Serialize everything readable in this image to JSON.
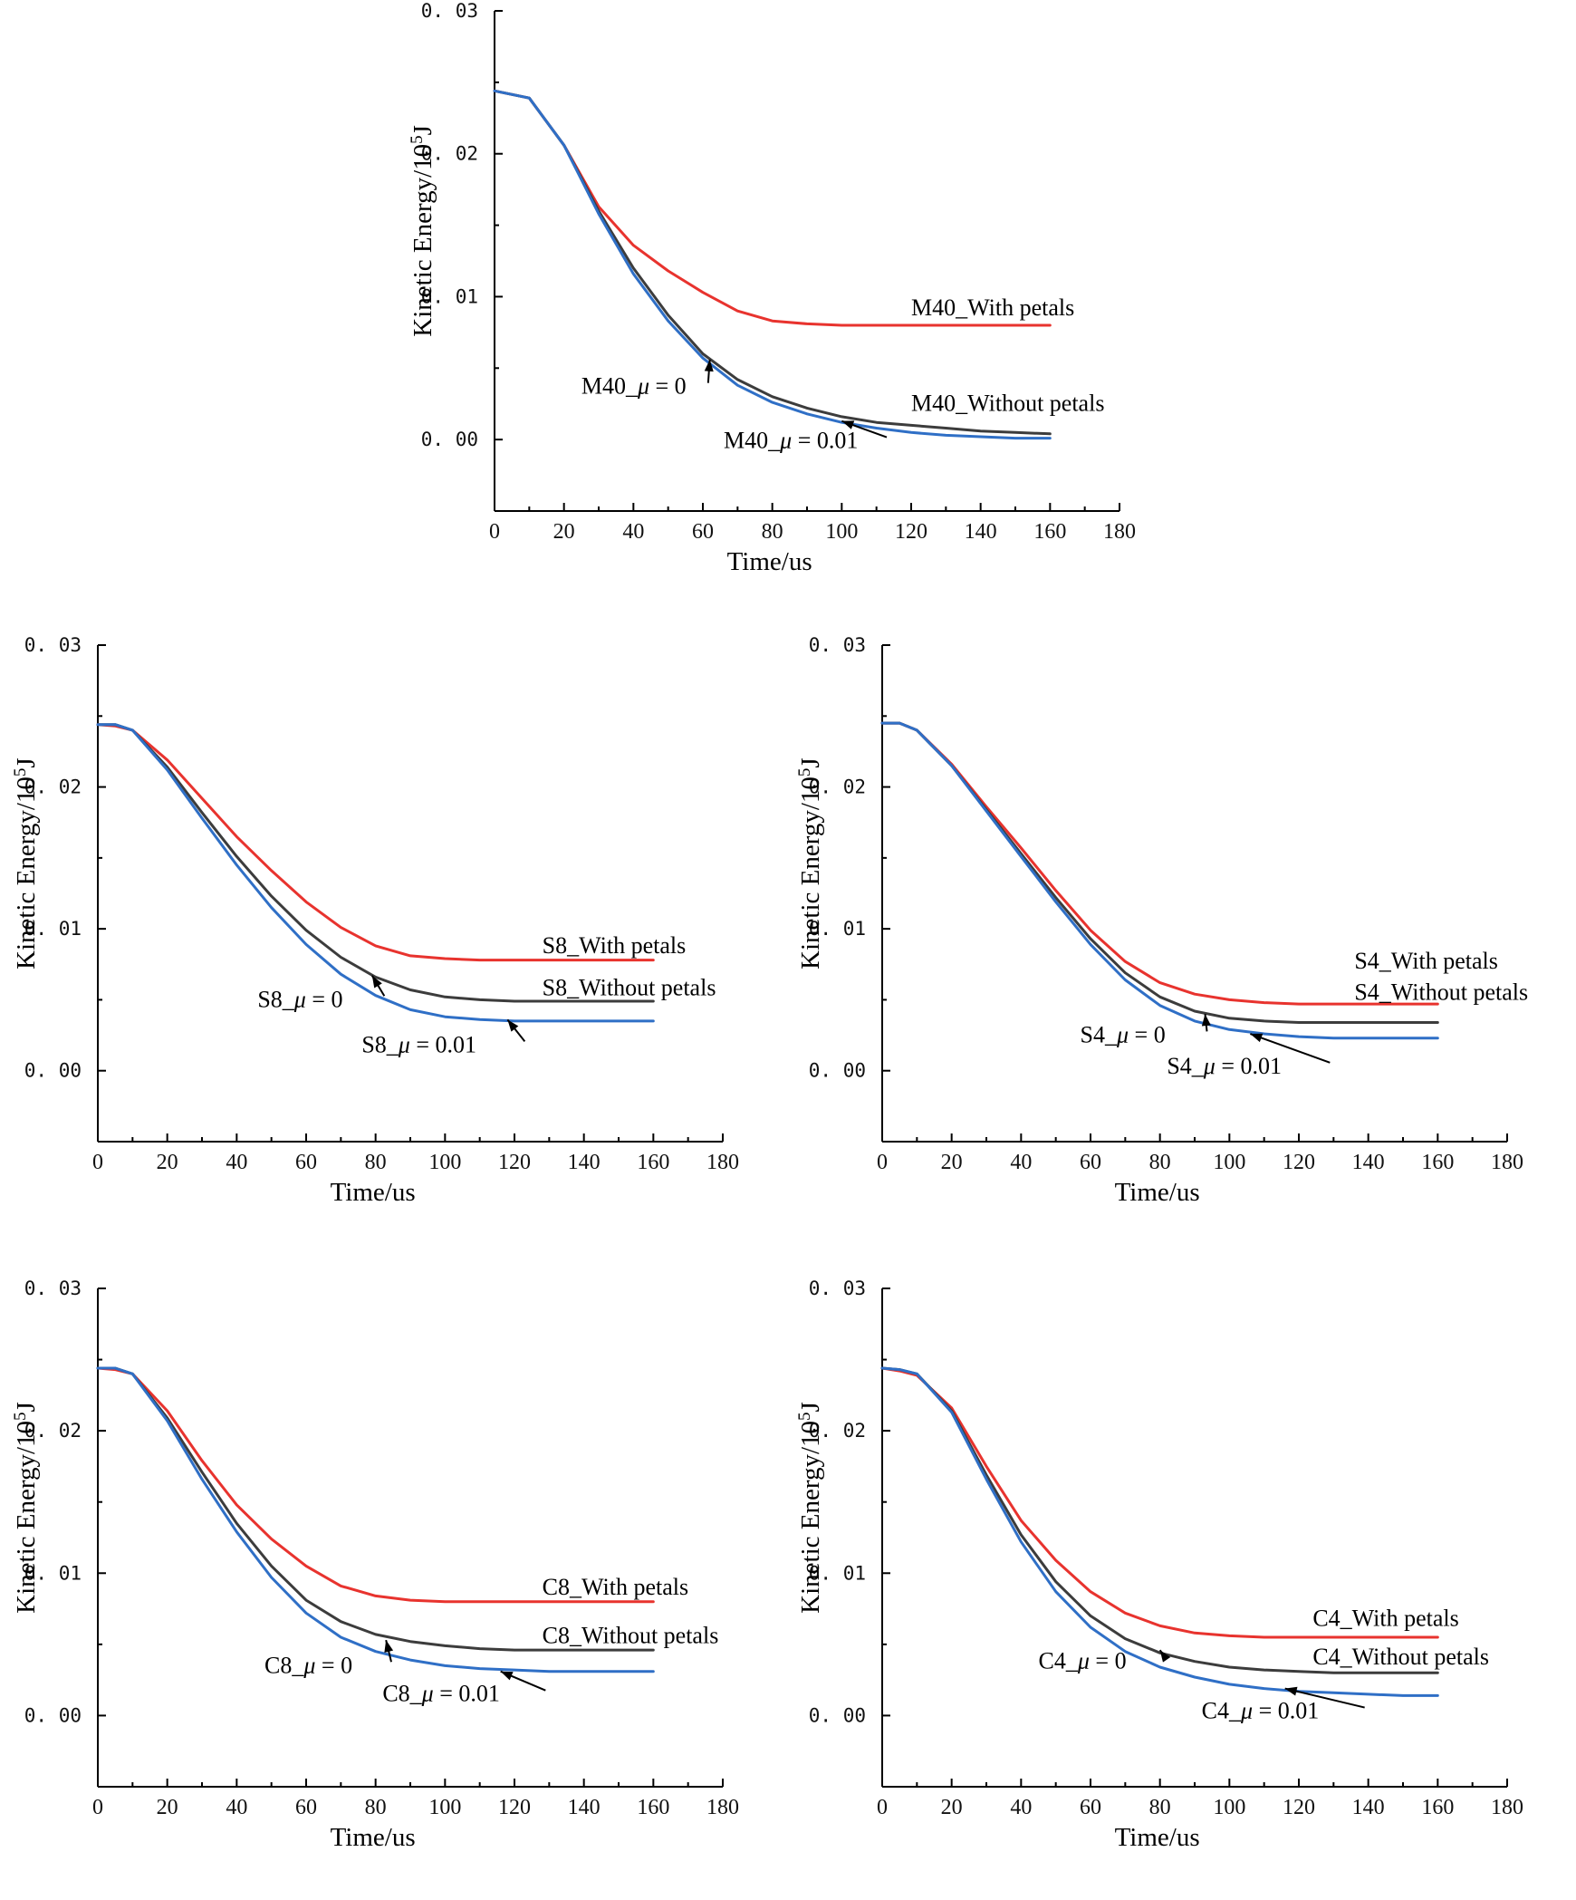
{
  "colors": {
    "with_petals": "#e8332e",
    "without_petals": "#3c3c3c",
    "mu_001": "#2f6fc6"
  },
  "chart_data": [
    {
      "type": "line",
      "panel": "top-center",
      "xlabel": "Time/us",
      "ylabel": "Kinetic Energy/10",
      "ylabel_exp": "5",
      "ylabel_unit": "J",
      "xlim": [
        0,
        180
      ],
      "ylim": [
        -0.005,
        0.03
      ],
      "xticks": [
        "0",
        "20",
        "40",
        "60",
        "80",
        "100",
        "120",
        "140",
        "160",
        "180"
      ],
      "yticks": [
        "0. 00",
        "0. 01",
        "0. 02",
        "0. 03"
      ],
      "ytick_values": [
        0,
        0.01,
        0.02,
        0.03
      ],
      "x": [
        0,
        10,
        20,
        30,
        40,
        50,
        60,
        70,
        80,
        90,
        100,
        110,
        120,
        130,
        140,
        150,
        160
      ],
      "series": [
        {
          "name": "M40_With petals",
          "color_key": "with_petals",
          "values": [
            0.0244,
            0.0239,
            0.0206,
            0.0163,
            0.0136,
            0.0118,
            0.0103,
            0.009,
            0.0083,
            0.0081,
            0.008,
            0.008,
            0.008,
            0.008,
            0.008,
            0.008,
            0.008
          ]
        },
        {
          "name": "M40_Without petals",
          "color_key": "without_petals",
          "values": [
            0.0244,
            0.0239,
            0.0206,
            0.016,
            0.012,
            0.0087,
            0.006,
            0.0042,
            0.003,
            0.0022,
            0.0016,
            0.0012,
            0.001,
            0.0008,
            0.0006,
            0.0005,
            0.0004
          ]
        },
        {
          "name": "M40_μ=0.01",
          "color_key": "mu_001",
          "values": [
            0.0244,
            0.0239,
            0.0206,
            0.0158,
            0.0116,
            0.0083,
            0.0057,
            0.0038,
            0.0026,
            0.0018,
            0.0012,
            0.0008,
            0.0005,
            0.0003,
            0.0002,
            0.0001,
            0.0001
          ]
        }
      ],
      "labels": [
        {
          "text": "M40_With petals",
          "x": 120,
          "y": 0.0087
        },
        {
          "text": "M40_Without petals",
          "x": 120,
          "y": 0.002
        },
        {
          "text": "M40_",
          "italic": "μ",
          "rest": " = 0",
          "x": 25,
          "y": 0.0032,
          "arrow_to": [
            62,
            0.0056
          ]
        },
        {
          "text": "M40_",
          "italic": "μ",
          "rest": " = 0.01",
          "x": 66,
          "y": -0.0006,
          "arrow_to": [
            100,
            0.0013
          ]
        }
      ]
    },
    {
      "type": "line",
      "panel": "middle-left",
      "xlabel": "Time/us",
      "ylabel": "Kinetic Energy/10",
      "ylabel_exp": "5",
      "ylabel_unit": "J",
      "xlim": [
        0,
        180
      ],
      "ylim": [
        -0.005,
        0.03
      ],
      "xticks": [
        "0",
        "20",
        "40",
        "60",
        "80",
        "100",
        "120",
        "140",
        "160",
        "180"
      ],
      "yticks": [
        "0. 00",
        "0. 01",
        "0. 02",
        "0. 03"
      ],
      "ytick_values": [
        0,
        0.01,
        0.02,
        0.03
      ],
      "x": [
        0,
        5,
        10,
        20,
        30,
        40,
        50,
        60,
        70,
        80,
        90,
        100,
        110,
        120,
        130,
        140,
        150,
        160
      ],
      "series": [
        {
          "name": "S8_With petals",
          "color_key": "with_petals",
          "values": [
            0.0244,
            0.0243,
            0.024,
            0.0219,
            0.0192,
            0.0165,
            0.0141,
            0.0119,
            0.0101,
            0.0088,
            0.0081,
            0.0079,
            0.0078,
            0.0078,
            0.0078,
            0.0078,
            0.0078,
            0.0078
          ]
        },
        {
          "name": "S8_Without petals",
          "color_key": "without_petals",
          "values": [
            0.0244,
            0.0244,
            0.024,
            0.0214,
            0.0182,
            0.0151,
            0.0123,
            0.0099,
            0.008,
            0.0066,
            0.0057,
            0.0052,
            0.005,
            0.0049,
            0.0049,
            0.0049,
            0.0049,
            0.0049
          ]
        },
        {
          "name": "S8_μ=0.01",
          "color_key": "mu_001",
          "values": [
            0.0244,
            0.0244,
            0.024,
            0.0212,
            0.0178,
            0.0145,
            0.0115,
            0.0089,
            0.0068,
            0.0053,
            0.0043,
            0.0038,
            0.0036,
            0.0035,
            0.0035,
            0.0035,
            0.0035,
            0.0035
          ]
        }
      ],
      "labels": [
        {
          "text": "S8_With petals",
          "x": 128,
          "y": 0.0083
        },
        {
          "text": "S8_Without petals",
          "x": 128,
          "y": 0.0053
        },
        {
          "text": "S8_",
          "italic": "μ",
          "rest": " = 0",
          "x": 46,
          "y": 0.0045,
          "arrow_to": [
            79,
            0.0067
          ]
        },
        {
          "text": "S8_",
          "italic": "μ",
          "rest": " = 0.01",
          "x": 76,
          "y": 0.0013,
          "arrow_to": [
            118,
            0.0036
          ]
        }
      ]
    },
    {
      "type": "line",
      "panel": "middle-right",
      "xlabel": "Time/us",
      "ylabel": "Kinetic Energy/10",
      "ylabel_exp": "5",
      "ylabel_unit": "J",
      "xlim": [
        0,
        180
      ],
      "ylim": [
        -0.005,
        0.03
      ],
      "xticks": [
        "0",
        "20",
        "40",
        "60",
        "80",
        "100",
        "120",
        "140",
        "160",
        "180"
      ],
      "yticks": [
        "0. 00",
        "0. 01",
        "0. 02",
        "0. 03"
      ],
      "ytick_values": [
        0,
        0.01,
        0.02,
        0.03
      ],
      "x": [
        0,
        5,
        10,
        20,
        30,
        40,
        50,
        60,
        70,
        80,
        90,
        100,
        110,
        120,
        130,
        140,
        150,
        160
      ],
      "series": [
        {
          "name": "S4_With petals",
          "color_key": "with_petals",
          "values": [
            0.0245,
            0.0245,
            0.024,
            0.0216,
            0.0186,
            0.0157,
            0.0127,
            0.0099,
            0.0077,
            0.0062,
            0.0054,
            0.005,
            0.0048,
            0.0047,
            0.0047,
            0.0047,
            0.0047,
            0.0047
          ]
        },
        {
          "name": "S4_Without petals",
          "color_key": "without_petals",
          "values": [
            0.0245,
            0.0245,
            0.024,
            0.0215,
            0.0184,
            0.0153,
            0.0122,
            0.0093,
            0.0069,
            0.0052,
            0.0042,
            0.0037,
            0.0035,
            0.0034,
            0.0034,
            0.0034,
            0.0034,
            0.0034
          ]
        },
        {
          "name": "S4_μ=0.01",
          "color_key": "mu_001",
          "values": [
            0.0245,
            0.0245,
            0.024,
            0.0215,
            0.0183,
            0.0151,
            0.0119,
            0.0089,
            0.0064,
            0.0046,
            0.0035,
            0.0029,
            0.0026,
            0.0024,
            0.0023,
            0.0023,
            0.0023,
            0.0023
          ]
        }
      ],
      "labels": [
        {
          "text": "S4_With petals",
          "x": 136,
          "y": 0.0072
        },
        {
          "text": "S4_Without petals",
          "x": 136,
          "y": 0.005
        },
        {
          "text": "S4_",
          "italic": "μ",
          "rest": " = 0",
          "x": 57,
          "y": 0.002,
          "arrow_to": [
            93,
            0.004
          ]
        },
        {
          "text": "S4_",
          "italic": "μ",
          "rest": " = 0.01",
          "x": 82,
          "y": -0.0002,
          "arrow_to": [
            106,
            0.0026
          ]
        }
      ]
    },
    {
      "type": "line",
      "panel": "bottom-left",
      "xlabel": "Time/us",
      "ylabel": "Kinetic Energy/10",
      "ylabel_exp": "5",
      "ylabel_unit": "J",
      "xlim": [
        0,
        180
      ],
      "ylim": [
        -0.005,
        0.03
      ],
      "xticks": [
        "0",
        "20",
        "40",
        "60",
        "80",
        "100",
        "120",
        "140",
        "160",
        "180"
      ],
      "yticks": [
        "0. 00",
        "0. 01",
        "0. 02",
        "0. 03"
      ],
      "ytick_values": [
        0,
        0.01,
        0.02,
        0.03
      ],
      "x": [
        0,
        5,
        10,
        20,
        30,
        40,
        50,
        60,
        70,
        80,
        90,
        100,
        110,
        120,
        130,
        140,
        150,
        160
      ],
      "series": [
        {
          "name": "C8_With petals",
          "color_key": "with_petals",
          "values": [
            0.0244,
            0.0243,
            0.024,
            0.0214,
            0.0179,
            0.0148,
            0.0124,
            0.0105,
            0.0091,
            0.0084,
            0.0081,
            0.008,
            0.008,
            0.008,
            0.008,
            0.008,
            0.008,
            0.008
          ]
        },
        {
          "name": "C8_Without petals",
          "color_key": "without_petals",
          "values": [
            0.0244,
            0.0244,
            0.024,
            0.0209,
            0.0171,
            0.0135,
            0.0105,
            0.0081,
            0.0066,
            0.0057,
            0.0052,
            0.0049,
            0.0047,
            0.0046,
            0.0046,
            0.0046,
            0.0046,
            0.0046
          ]
        },
        {
          "name": "C8_μ=0.01",
          "color_key": "mu_001",
          "values": [
            0.0244,
            0.0244,
            0.024,
            0.0207,
            0.0166,
            0.0129,
            0.0097,
            0.0072,
            0.0055,
            0.0045,
            0.0039,
            0.0035,
            0.0033,
            0.0032,
            0.0031,
            0.0031,
            0.0031,
            0.0031
          ]
        }
      ],
      "labels": [
        {
          "text": "C8_With petals",
          "x": 128,
          "y": 0.0085
        },
        {
          "text": "C8_Without petals",
          "x": 128,
          "y": 0.0051
        },
        {
          "text": "C8_",
          "italic": "μ",
          "rest": " = 0",
          "x": 48,
          "y": 0.003,
          "arrow_to": [
            83,
            0.0053
          ]
        },
        {
          "text": "C8_",
          "italic": "μ",
          "rest": " = 0.01",
          "x": 82,
          "y": 0.001,
          "arrow_to": [
            116,
            0.0031
          ]
        }
      ]
    },
    {
      "type": "line",
      "panel": "bottom-right",
      "xlabel": "Time/us",
      "ylabel": "Kinetic Energy/10",
      "ylabel_exp": "5",
      "ylabel_unit": "J",
      "xlim": [
        0,
        180
      ],
      "ylim": [
        -0.005,
        0.03
      ],
      "xticks": [
        "0",
        "20",
        "40",
        "60",
        "80",
        "100",
        "120",
        "140",
        "160",
        "180"
      ],
      "yticks": [
        "0. 00",
        "0. 01",
        "0. 02",
        "0. 03"
      ],
      "ytick_values": [
        0,
        0.01,
        0.02,
        0.03
      ],
      "x": [
        0,
        5,
        10,
        20,
        30,
        40,
        50,
        60,
        70,
        80,
        90,
        100,
        110,
        120,
        130,
        140,
        150,
        160
      ],
      "series": [
        {
          "name": "C4_With petals",
          "color_key": "with_petals",
          "values": [
            0.0244,
            0.0242,
            0.0239,
            0.0216,
            0.0175,
            0.0137,
            0.0109,
            0.0087,
            0.0072,
            0.0063,
            0.0058,
            0.0056,
            0.0055,
            0.0055,
            0.0055,
            0.0055,
            0.0055,
            0.0055
          ]
        },
        {
          "name": "C4_Without petals",
          "color_key": "without_petals",
          "values": [
            0.0244,
            0.0243,
            0.024,
            0.0214,
            0.0169,
            0.0127,
            0.0094,
            0.007,
            0.0054,
            0.0044,
            0.0038,
            0.0034,
            0.0032,
            0.0031,
            0.003,
            0.003,
            0.003,
            0.003
          ]
        },
        {
          "name": "C4_μ=0.01",
          "color_key": "mu_001",
          "values": [
            0.0244,
            0.0243,
            0.024,
            0.0213,
            0.0166,
            0.0122,
            0.0087,
            0.0062,
            0.0045,
            0.0034,
            0.0027,
            0.0022,
            0.0019,
            0.0017,
            0.0016,
            0.0015,
            0.0014,
            0.0014
          ]
        }
      ],
      "labels": [
        {
          "text": "C4_With petals",
          "x": 124,
          "y": 0.0063
        },
        {
          "text": "C4_Without petals",
          "x": 124,
          "y": 0.0036
        },
        {
          "text": "C4_",
          "italic": "μ",
          "rest": " = 0",
          "x": 45,
          "y": 0.0033,
          "arrow_to": [
            80,
            0.0046
          ]
        },
        {
          "text": "C4_",
          "italic": "μ",
          "rest": " = 0.01",
          "x": 92,
          "y": -0.0002,
          "arrow_to": [
            116,
            0.0019
          ]
        }
      ]
    }
  ]
}
